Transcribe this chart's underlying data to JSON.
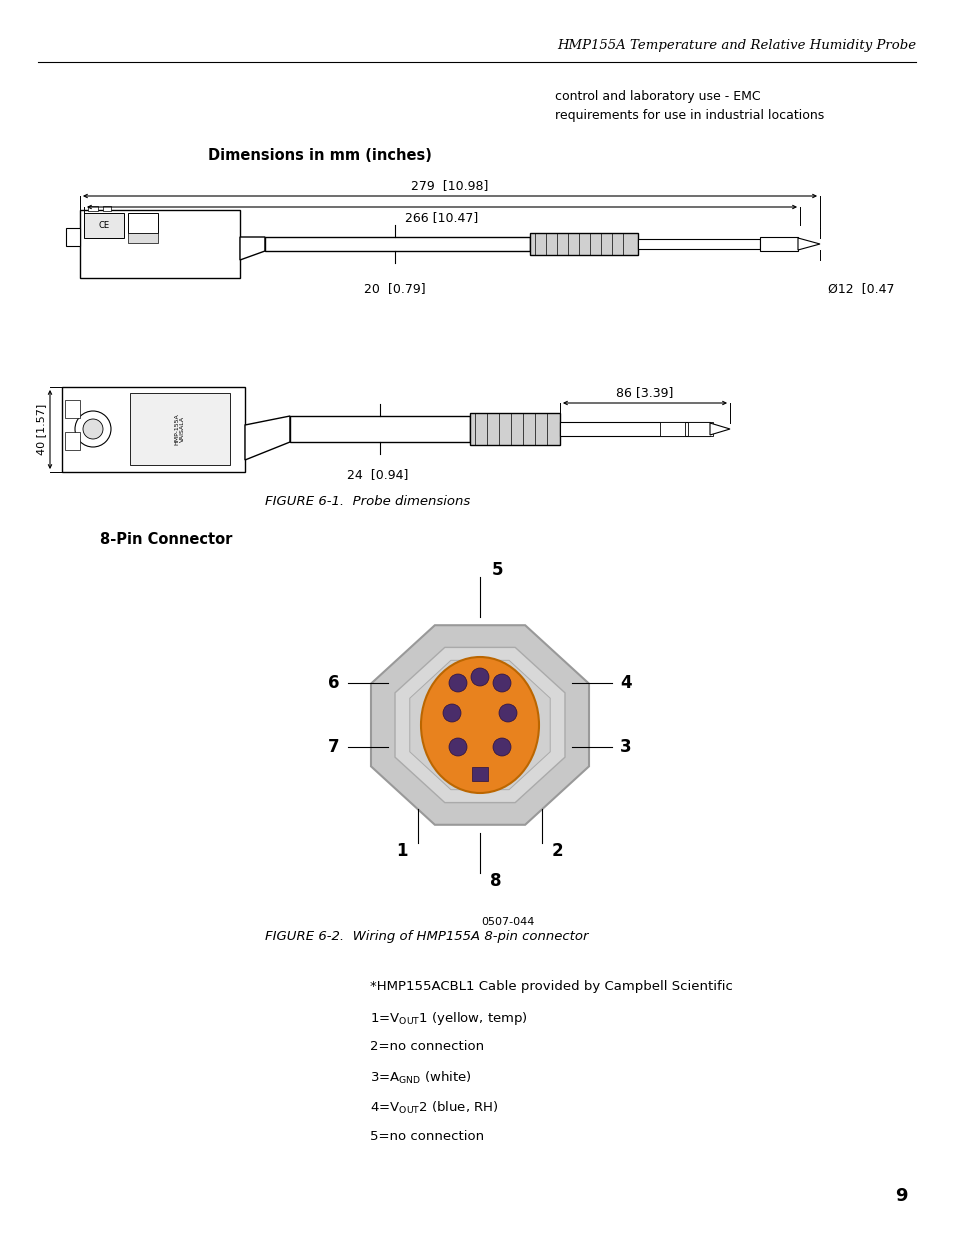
{
  "header_text": "HMP155A Temperature and Relative Humidity Probe",
  "top_right_text": "control and laboratory use - EMC\nrequirements for use in industrial locations",
  "section1_title": "Dimensions in mm (inches)",
  "fig1_caption": "FIGURE 6-1.  Probe dimensions",
  "fig2_caption": "FIGURE 6-2.  Wiring of HMP155A 8-pin connector",
  "section2_title": "8-Pin Connector",
  "pin_label_id": "0507-044",
  "page_number": "9",
  "bg_color": "#ffffff",
  "outer_color": "#c8c8c8",
  "inner_color": "#d4d4d4",
  "orange_color": "#e8821e",
  "dot_color": "#4a2d6a"
}
